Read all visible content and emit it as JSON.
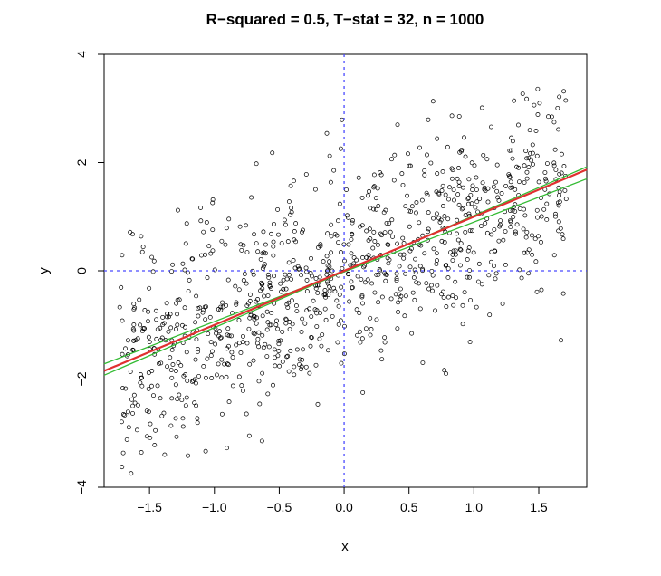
{
  "chart_data": {
    "type": "scatter",
    "title": "R−squared = 0.5, T−stat = 32, n = 1000",
    "xlabel": "x",
    "ylabel": "y",
    "xlim": [
      -1.85,
      1.87
    ],
    "ylim": [
      -4,
      4
    ],
    "x_ticks": [
      -1.5,
      -1.0,
      -0.5,
      0.0,
      0.5,
      1.0,
      1.5
    ],
    "x_tick_labels": [
      "−1.5",
      "−1.0",
      "−0.5",
      "0.0",
      "0.5",
      "1.0",
      "1.5"
    ],
    "y_ticks": [
      -4,
      -2,
      0,
      2,
      4
    ],
    "y_tick_labels": [
      "−4",
      "−2",
      "0",
      "2",
      "4"
    ],
    "n_points": 1000,
    "grid": false,
    "reference_lines": {
      "vertical_x": 0,
      "horizontal_y": 0,
      "color": "#4a4aff",
      "style": "dotted"
    },
    "fit_line": {
      "color": "#e03030",
      "intercept": 0.0,
      "slope": 1.0
    },
    "confidence_lines": {
      "color": "#33bb33",
      "at_xmin": [
        -1.93,
        -1.72
      ],
      "at_xmax": [
        1.92,
        1.7
      ]
    },
    "marker_color": "#000000"
  }
}
